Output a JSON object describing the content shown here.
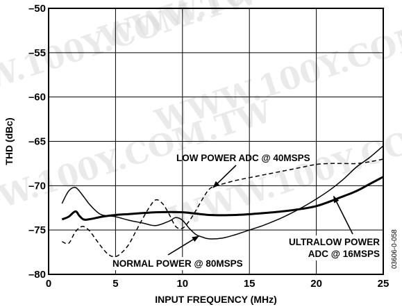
{
  "watermark": "WWW.100Y.COM.TW",
  "chart_data": {
    "type": "line",
    "xlabel": "INPUT FREQUENCY (MHz)",
    "ylabel": "THD (dBc)",
    "xlim": [
      0,
      25
    ],
    "ylim": [
      -80,
      -50
    ],
    "x_ticks": [
      0,
      5,
      10,
      15,
      20,
      25
    ],
    "y_ticks": [
      -80,
      -75,
      -70,
      -65,
      -60,
      -55,
      -50
    ],
    "x_tick_labels": [
      "0",
      "5",
      "10",
      "15",
      "20",
      "25"
    ],
    "y_tick_labels": [
      "–80",
      "–75",
      "–70",
      "–65",
      "–60",
      "–55",
      "–50"
    ],
    "grid": true,
    "figure_code": "03606-0-058",
    "series": [
      {
        "name": "LOW POWER ADC @ 40MSPS",
        "style": "dashed",
        "x": [
          1.0,
          1.5,
          2.0,
          2.5,
          3.0,
          3.5,
          4.0,
          4.5,
          5.0,
          5.5,
          6.0,
          6.5,
          7.0,
          7.5,
          8.0,
          8.5,
          9.0,
          9.5,
          10.0,
          10.5,
          11.0,
          11.5,
          12.0,
          12.5,
          13.0,
          14.0,
          15.0,
          16.0,
          17.0,
          18.0,
          19.0,
          20.0,
          21.0,
          22.0,
          23.0,
          24.0,
          25.0
        ],
        "y": [
          -76.3,
          -76.5,
          -75.2,
          -74.6,
          -75.0,
          -76.0,
          -77.0,
          -77.8,
          -78.0,
          -77.5,
          -76.6,
          -75.2,
          -73.8,
          -72.5,
          -71.6,
          -72.0,
          -73.2,
          -74.6,
          -74.8,
          -74.0,
          -72.8,
          -71.5,
          -70.4,
          -70.0,
          -69.8,
          -69.4,
          -69.1,
          -68.8,
          -68.5,
          -68.2,
          -67.9,
          -67.6,
          -67.5,
          -67.5,
          -67.5,
          -67.3,
          -67.0
        ]
      },
      {
        "name": "NORMAL POWER @ 80MSPS",
        "style": "thick",
        "x": [
          1.0,
          1.5,
          2.0,
          2.3,
          2.6,
          3.0,
          4.0,
          5.0,
          6.0,
          8.0,
          10.0,
          12.0,
          14.0,
          16.0,
          18.0,
          20.0,
          22.0,
          23.0,
          24.0,
          25.0
        ],
        "y": [
          -73.8,
          -73.5,
          -72.9,
          -73.4,
          -73.8,
          -73.8,
          -73.5,
          -73.3,
          -73.2,
          -73.0,
          -73.0,
          -73.3,
          -73.3,
          -73.1,
          -72.8,
          -72.3,
          -71.2,
          -70.6,
          -69.8,
          -69.0
        ]
      },
      {
        "name": "ULTRALOW POWER ADC @ 16MSPS",
        "style": "thin",
        "x": [
          1.0,
          1.5,
          2.0,
          2.5,
          3.0,
          3.5,
          4.0,
          5.0,
          6.0,
          7.0,
          8.0,
          9.0,
          9.5,
          10.0,
          10.5,
          11.0,
          11.5,
          12.0,
          13.0,
          14.0,
          15.0,
          16.0,
          17.0,
          18.0,
          19.0,
          20.0,
          21.0,
          22.0,
          23.0,
          24.0,
          25.0
        ],
        "y": [
          -72.0,
          -70.6,
          -70.2,
          -71.0,
          -72.0,
          -72.8,
          -73.3,
          -73.5,
          -73.9,
          -74.2,
          -74.5,
          -74.0,
          -73.6,
          -73.9,
          -74.8,
          -75.5,
          -75.8,
          -76.0,
          -75.9,
          -75.5,
          -75.0,
          -74.5,
          -73.9,
          -73.2,
          -72.4,
          -71.5,
          -70.5,
          -69.3,
          -67.9,
          -66.8,
          -65.5
        ]
      }
    ],
    "annotations": [
      {
        "text": "LOW POWER ADC @ 40MSPS",
        "series": "LOW POWER ADC @ 40MSPS"
      },
      {
        "text": "NORMAL POWER @ 80MSPS",
        "series": "NORMAL POWER @ 80MSPS"
      },
      {
        "text_lines": [
          "ULTRALOW POWER",
          "ADC @ 16MSPS"
        ],
        "series": "ULTRALOW POWER ADC @ 16MSPS"
      }
    ]
  }
}
